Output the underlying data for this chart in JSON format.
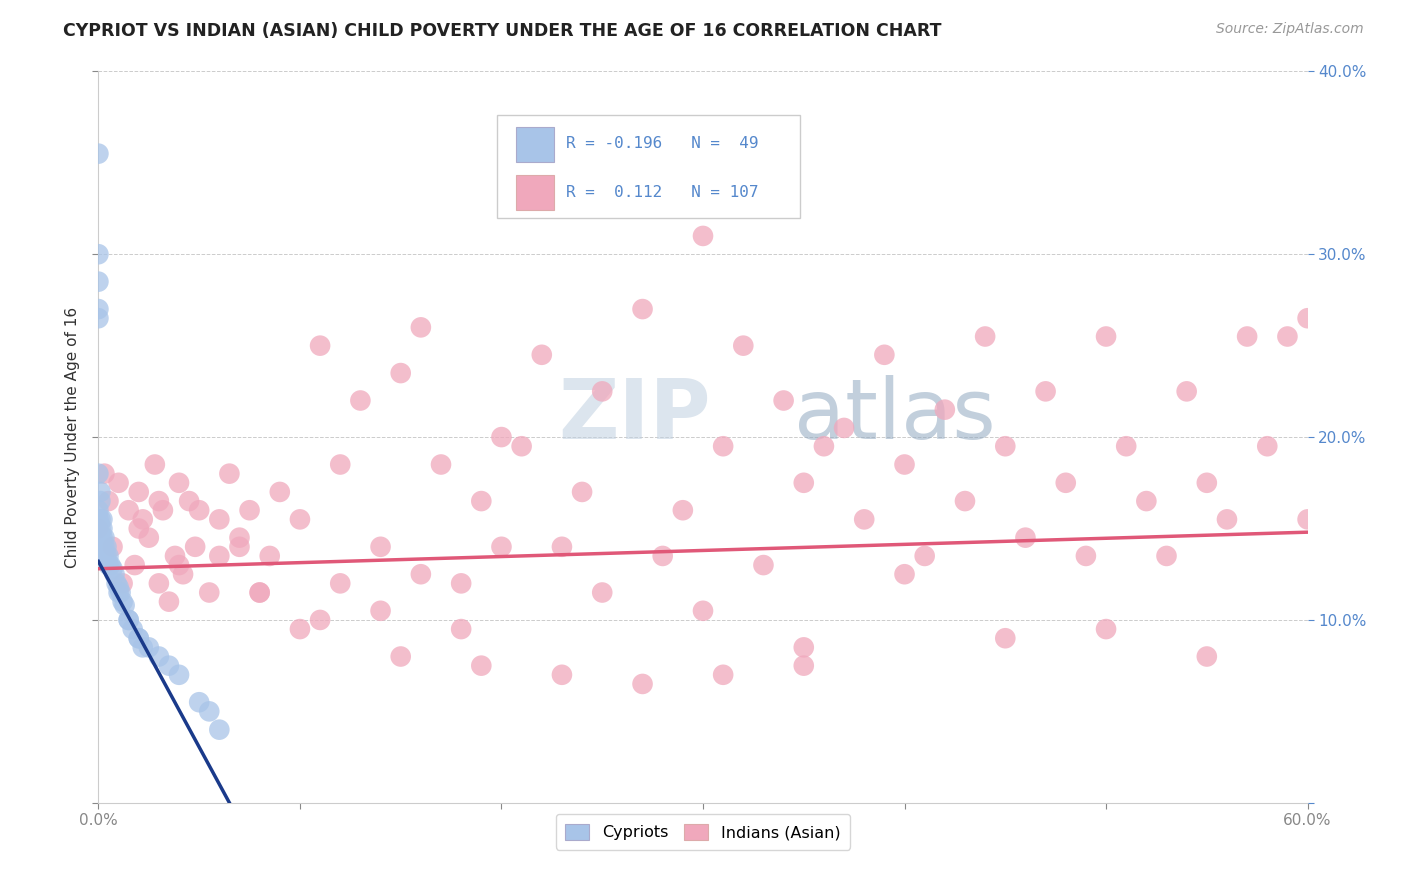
{
  "title": "CYPRIOT VS INDIAN (ASIAN) CHILD POVERTY UNDER THE AGE OF 16 CORRELATION CHART",
  "source": "Source: ZipAtlas.com",
  "ylabel": "Child Poverty Under the Age of 16",
  "xlim": [
    0.0,
    0.6
  ],
  "ylim": [
    0.0,
    0.4
  ],
  "xticks": [
    0.0,
    0.1,
    0.2,
    0.3,
    0.4,
    0.5,
    0.6
  ],
  "yticks": [
    0.0,
    0.1,
    0.2,
    0.3,
    0.4
  ],
  "cypriot_color": "#a8c4e8",
  "indian_color": "#f0a8bc",
  "cypriot_line_color": "#1a3a8a",
  "indian_line_color": "#e05878",
  "right_axis_color": "#5588cc",
  "legend_box_color": "#5588cc",
  "background_color": "#ffffff",
  "grid_color": "#cccccc",
  "cypriot_x": [
    0.0,
    0.0,
    0.0,
    0.0,
    0.0,
    0.0,
    0.0,
    0.0,
    0.0,
    0.0,
    0.001,
    0.001,
    0.001,
    0.001,
    0.001,
    0.001,
    0.002,
    0.002,
    0.002,
    0.002,
    0.003,
    0.003,
    0.003,
    0.004,
    0.004,
    0.005,
    0.005,
    0.006,
    0.007,
    0.008,
    0.009,
    0.01,
    0.011,
    0.012,
    0.013,
    0.015,
    0.017,
    0.02,
    0.022,
    0.025,
    0.03,
    0.035,
    0.04,
    0.05,
    0.055,
    0.01,
    0.015,
    0.02,
    0.06
  ],
  "cypriot_y": [
    0.355,
    0.3,
    0.285,
    0.27,
    0.265,
    0.18,
    0.16,
    0.155,
    0.15,
    0.145,
    0.17,
    0.165,
    0.155,
    0.15,
    0.145,
    0.14,
    0.155,
    0.15,
    0.145,
    0.14,
    0.145,
    0.14,
    0.135,
    0.14,
    0.135,
    0.135,
    0.13,
    0.13,
    0.128,
    0.125,
    0.12,
    0.118,
    0.115,
    0.11,
    0.108,
    0.1,
    0.095,
    0.09,
    0.085,
    0.085,
    0.08,
    0.075,
    0.07,
    0.055,
    0.05,
    0.115,
    0.1,
    0.09,
    0.04
  ],
  "indian_x": [
    0.0,
    0.003,
    0.005,
    0.007,
    0.01,
    0.012,
    0.015,
    0.018,
    0.02,
    0.022,
    0.025,
    0.028,
    0.03,
    0.032,
    0.035,
    0.038,
    0.04,
    0.042,
    0.045,
    0.048,
    0.05,
    0.055,
    0.06,
    0.065,
    0.07,
    0.075,
    0.08,
    0.085,
    0.09,
    0.1,
    0.11,
    0.12,
    0.13,
    0.14,
    0.15,
    0.16,
    0.17,
    0.18,
    0.19,
    0.2,
    0.21,
    0.22,
    0.23,
    0.24,
    0.25,
    0.27,
    0.28,
    0.29,
    0.3,
    0.31,
    0.32,
    0.33,
    0.34,
    0.35,
    0.36,
    0.37,
    0.38,
    0.39,
    0.4,
    0.41,
    0.42,
    0.43,
    0.44,
    0.45,
    0.46,
    0.47,
    0.48,
    0.49,
    0.5,
    0.51,
    0.52,
    0.53,
    0.54,
    0.55,
    0.56,
    0.57,
    0.58,
    0.59,
    0.6,
    0.02,
    0.04,
    0.06,
    0.08,
    0.1,
    0.12,
    0.14,
    0.16,
    0.18,
    0.2,
    0.25,
    0.3,
    0.35,
    0.4,
    0.45,
    0.5,
    0.55,
    0.6,
    0.03,
    0.07,
    0.11,
    0.15,
    0.19,
    0.23,
    0.27,
    0.31,
    0.35
  ],
  "indian_y": [
    0.15,
    0.18,
    0.165,
    0.14,
    0.175,
    0.12,
    0.16,
    0.13,
    0.17,
    0.155,
    0.145,
    0.185,
    0.12,
    0.16,
    0.11,
    0.135,
    0.175,
    0.125,
    0.165,
    0.14,
    0.16,
    0.115,
    0.135,
    0.18,
    0.145,
    0.16,
    0.115,
    0.135,
    0.17,
    0.155,
    0.25,
    0.185,
    0.22,
    0.14,
    0.235,
    0.26,
    0.185,
    0.12,
    0.165,
    0.2,
    0.195,
    0.245,
    0.14,
    0.17,
    0.225,
    0.27,
    0.135,
    0.16,
    0.31,
    0.195,
    0.25,
    0.13,
    0.22,
    0.175,
    0.195,
    0.205,
    0.155,
    0.245,
    0.185,
    0.135,
    0.215,
    0.165,
    0.255,
    0.195,
    0.145,
    0.225,
    0.175,
    0.135,
    0.255,
    0.195,
    0.165,
    0.135,
    0.225,
    0.175,
    0.155,
    0.255,
    0.195,
    0.255,
    0.265,
    0.15,
    0.13,
    0.155,
    0.115,
    0.095,
    0.12,
    0.105,
    0.125,
    0.095,
    0.14,
    0.115,
    0.105,
    0.085,
    0.125,
    0.09,
    0.095,
    0.08,
    0.155,
    0.165,
    0.14,
    0.1,
    0.08,
    0.075,
    0.07,
    0.065,
    0.07,
    0.075
  ]
}
